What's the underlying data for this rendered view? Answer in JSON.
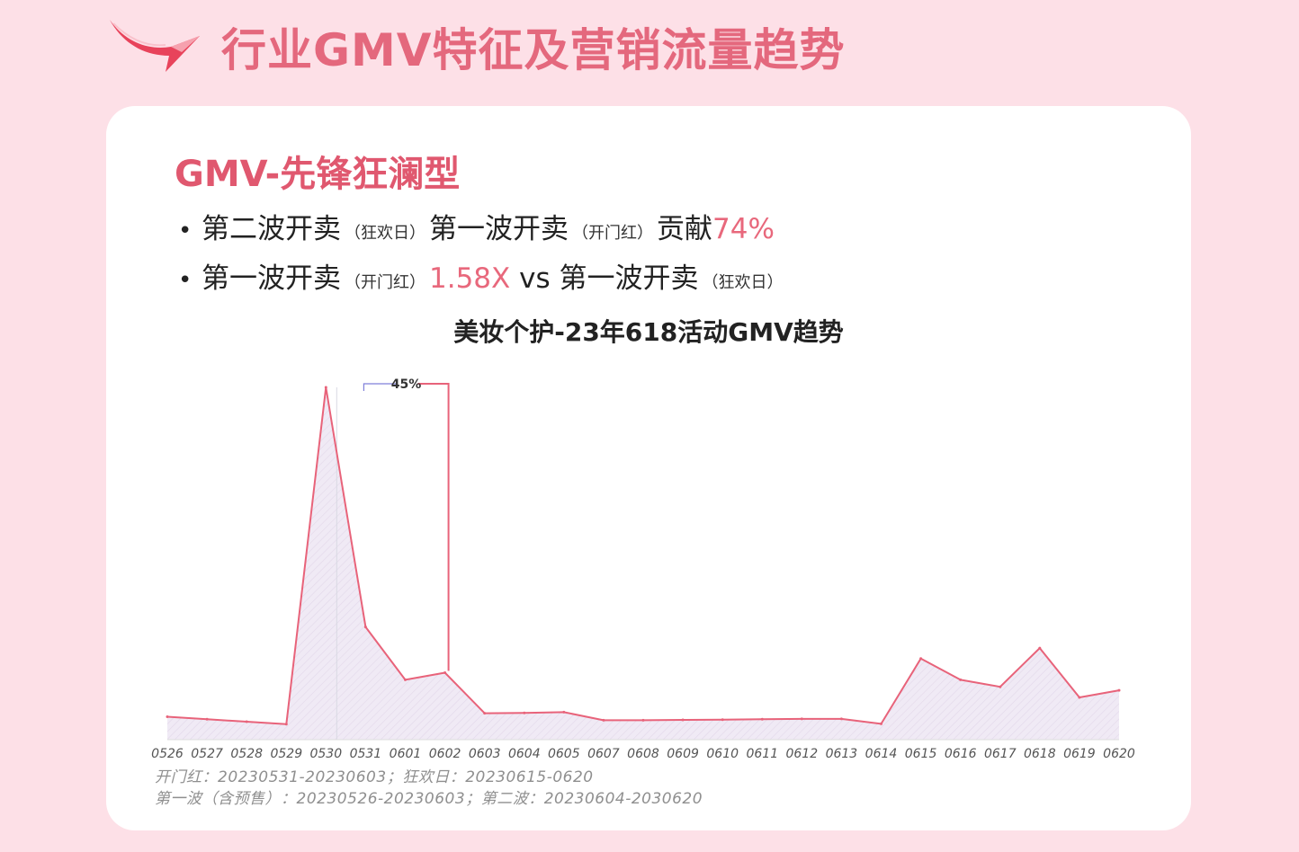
{
  "page": {
    "title": "行业GMV特征及营销流量趋势"
  },
  "card": {
    "title": "GMV-先锋狂澜型",
    "bullet1": {
      "a": "第二波开卖",
      "a_small": "（狂欢日）",
      "b": "第一波开卖",
      "b_small": "（开门红）",
      "c": "贡献",
      "value": "74%"
    },
    "bullet2": {
      "a": "第一波开卖",
      "a_small": "（开门红）",
      "value": "1.58X",
      "vs": "vs",
      "b": "第一波开卖",
      "b_small": "（狂欢日）"
    },
    "note1": "开门红：20230531-20230603；狂欢日：20230615-0620",
    "note2": "第一波（含预售）：20230526-20230603；第二波：20230604-2030620"
  },
  "colors": {
    "accent": "#e4687d",
    "line": "#e8637a",
    "area_fill": "#f0eaf5"
  },
  "chart_data": {
    "type": "area",
    "title": "美妆个护-23年618活动GMV趋势",
    "categories": [
      "0526",
      "0527",
      "0528",
      "0529",
      "0530",
      "0531",
      "0601",
      "0602",
      "0603",
      "0604",
      "0605",
      "0607",
      "0608",
      "0609",
      "0610",
      "0611",
      "0612",
      "0613",
      "0614",
      "0615",
      "0616",
      "0617",
      "0618",
      "0619",
      "0620"
    ],
    "series": [
      {
        "values": [
          6.5,
          5.8,
          5.1,
          4.4,
          100,
          32,
          17,
          19,
          7.5,
          7.6,
          7.8,
          5.5,
          5.5,
          5.6,
          5.7,
          5.8,
          5.9,
          5.9,
          4.5,
          23,
          17,
          15,
          26,
          12,
          14
        ]
      }
    ],
    "annotation": {
      "label": "45%",
      "from": "0531",
      "to": "0602"
    },
    "ylim": [
      0,
      100
    ],
    "grid": false,
    "legend": "none"
  }
}
